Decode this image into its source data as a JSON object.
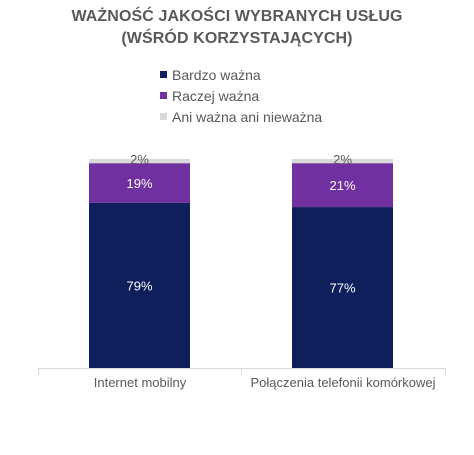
{
  "title": {
    "line1": "WAŻNOŚĆ JAKOŚCI WYBRANYCH USŁUG",
    "line2": "(WŚRÓD KORZYSTAJĄCYCH)"
  },
  "colors": {
    "bardzo": "#0f1f5c",
    "raczej": "#7030a0",
    "ani": "#d9d9d9",
    "axis": "#d9d9d9",
    "text": "#595959"
  },
  "chart_data": {
    "type": "bar",
    "stacked": true,
    "categories": [
      "Internet mobilny",
      "Połączenia telefonii komórkowej"
    ],
    "series": [
      {
        "name": "Bardzo ważna",
        "values": [
          79,
          77
        ],
        "labels": [
          "79%",
          "77%"
        ]
      },
      {
        "name": "Raczej ważna",
        "values": [
          19,
          21
        ],
        "labels": [
          "19%",
          "21%"
        ]
      },
      {
        "name": "Ani ważna ani nieważna",
        "values": [
          2,
          2
        ],
        "labels": [
          "2%",
          "2%"
        ]
      }
    ],
    "ylim": [
      0,
      100
    ],
    "legend_position": "top",
    "grid": false
  }
}
